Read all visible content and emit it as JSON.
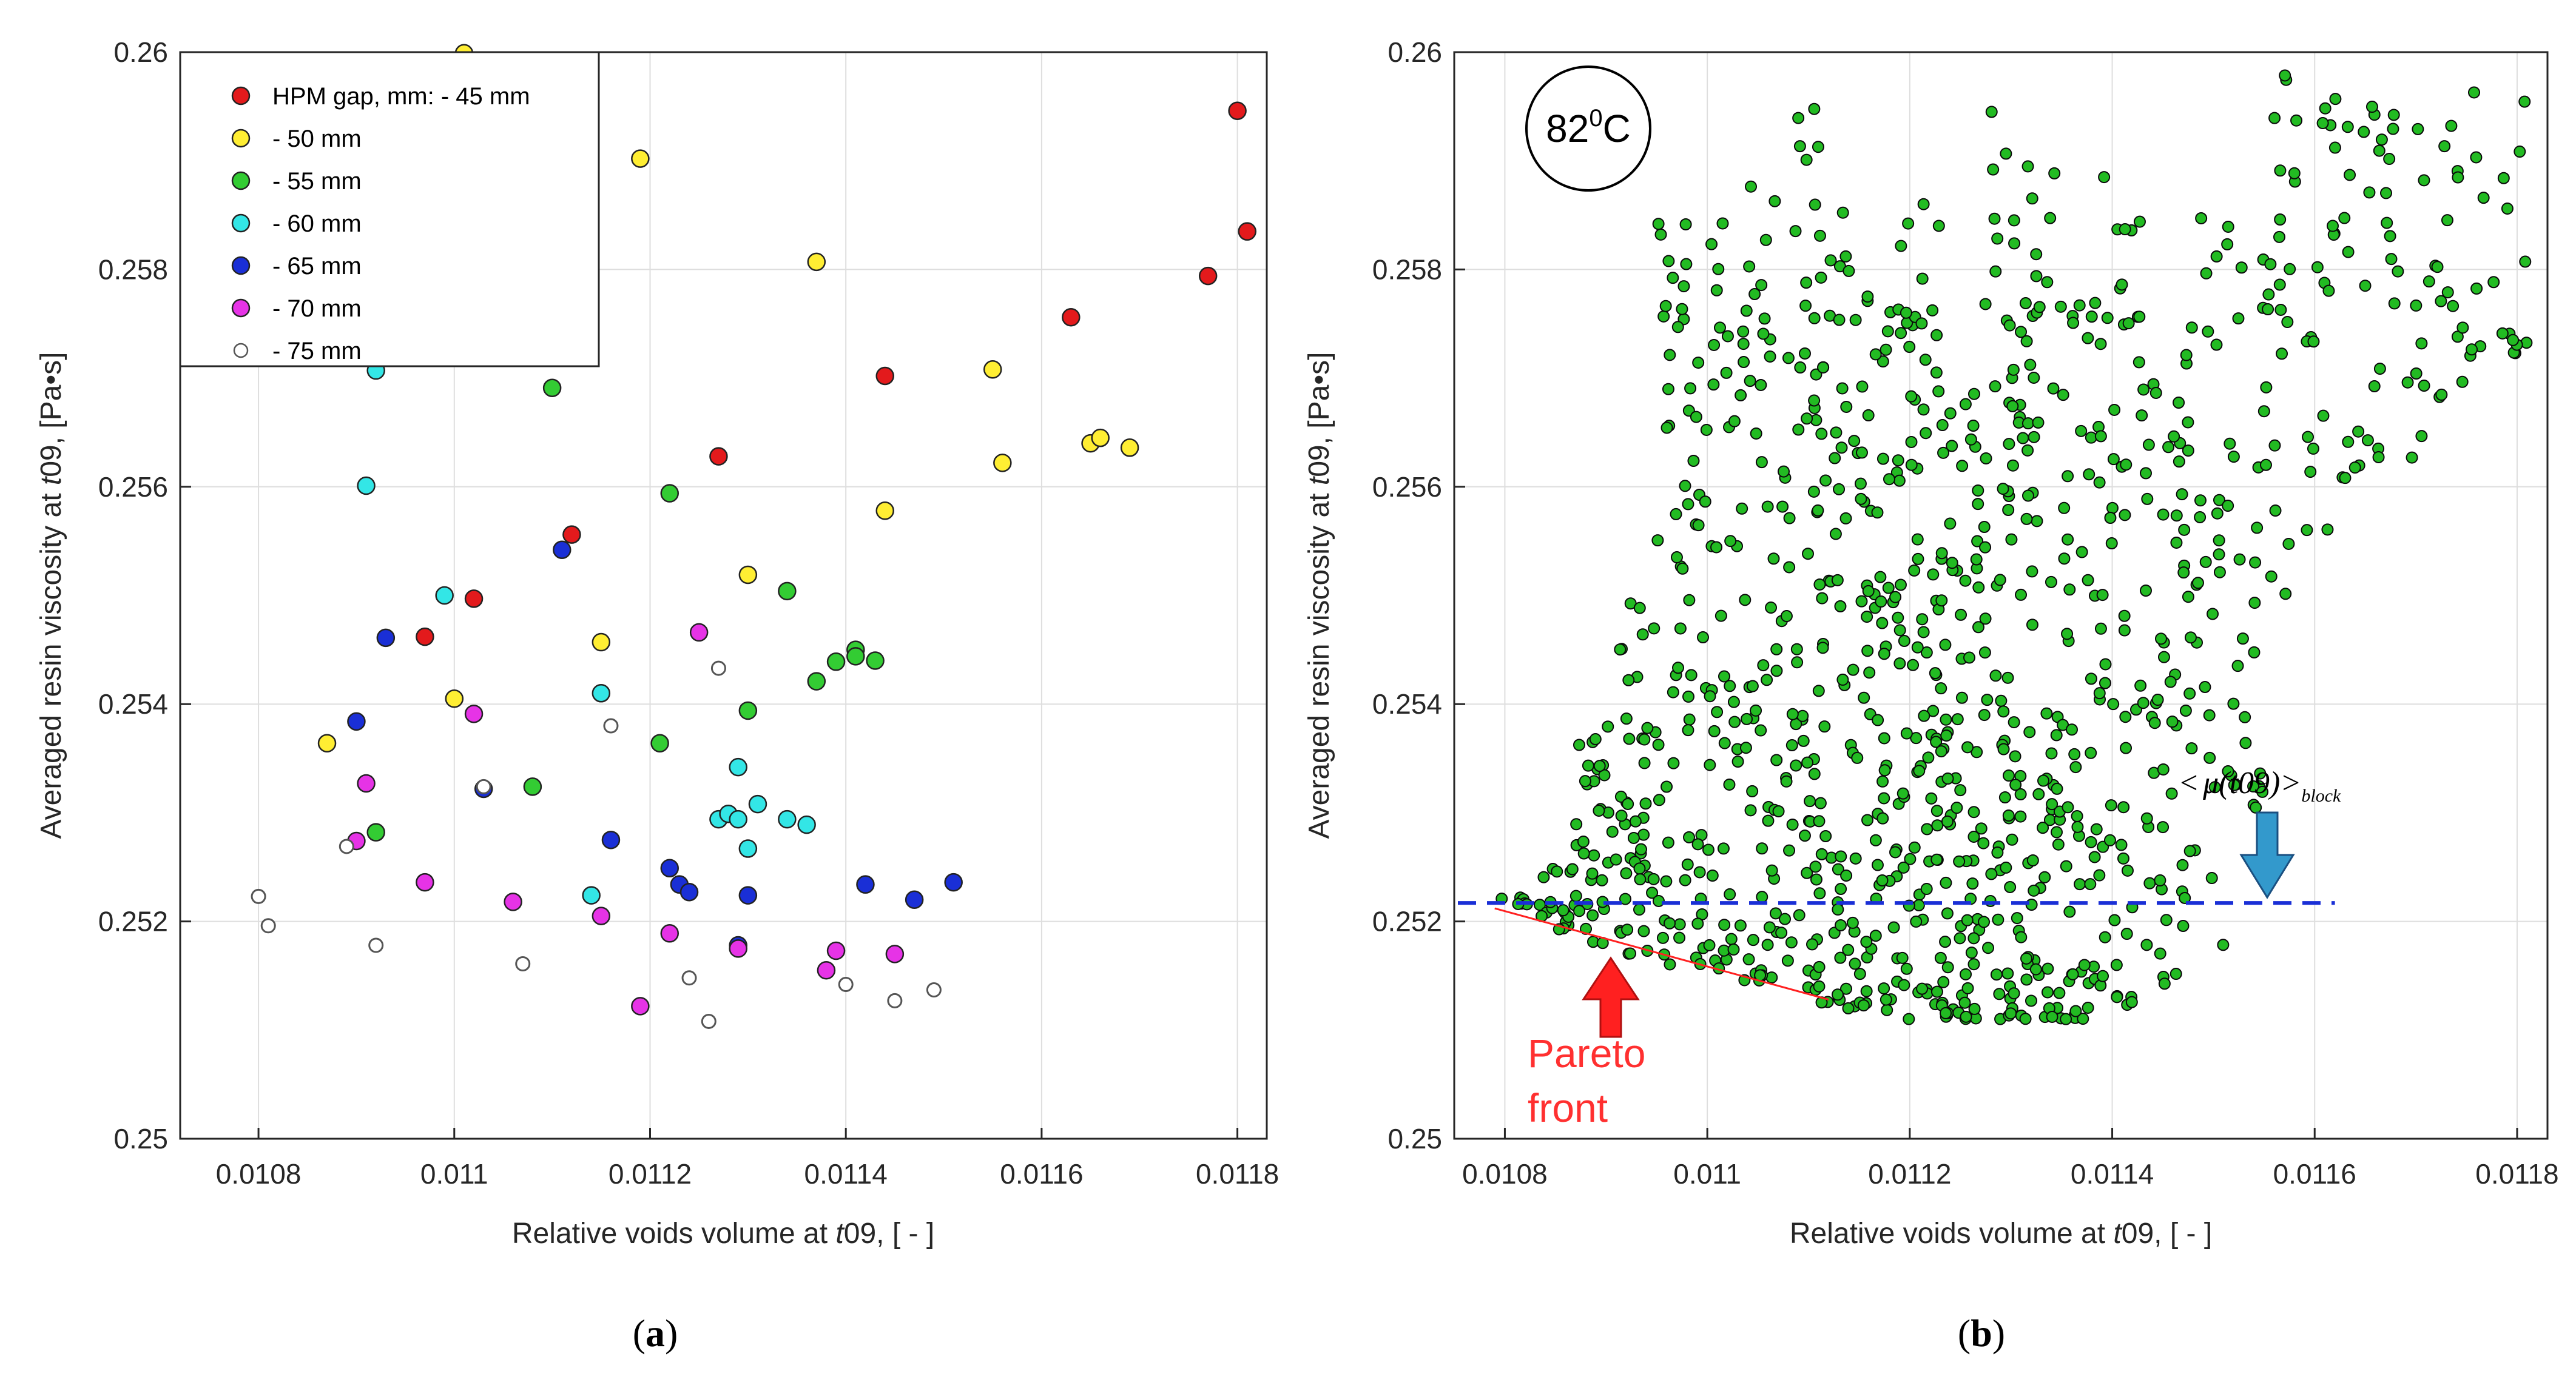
{
  "captions": {
    "a": "(a)",
    "b": "(b)"
  },
  "chart_data": [
    {
      "type": "scatter",
      "panel": "a",
      "xlabel_pre": "Relative voids volume at ",
      "xlabel_var": "t",
      "xlabel_post": "09, [ - ]",
      "ylabel_pre": "Averaged resin viscosity at ",
      "ylabel_var": "t",
      "ylabel_post": "09, [Pa•s]",
      "xlim": [
        0.01072,
        0.01183
      ],
      "ylim": [
        0.25,
        0.26
      ],
      "xticks": [
        0.0108,
        0.011,
        0.0112,
        0.0114,
        0.0116,
        0.0118
      ],
      "xtick_labels": [
        "0.0108",
        "0.011",
        "0.0112",
        "0.0114",
        "0.0116",
        "0.0118"
      ],
      "yticks": [
        0.25,
        0.252,
        0.254,
        0.256,
        0.258,
        0.26
      ],
      "ytick_labels": [
        "0.25",
        "0.252",
        "0.254",
        "0.256",
        "0.258",
        "0.26"
      ],
      "grid": true,
      "legend_position": "top-left",
      "series": [
        {
          "name": "HPM gap, mm: - 45 mm",
          "color": "#e31a1c",
          "points": [
            [
              0.01097,
              0.25462
            ],
            [
              0.01102,
              0.25497
            ],
            [
              0.01112,
              0.25556
            ],
            [
              0.01127,
              0.25628
            ],
            [
              0.01144,
              0.25702
            ],
            [
              0.01163,
              0.25756
            ],
            [
              0.01177,
              0.25794
            ],
            [
              0.0118,
              0.25946
            ],
            [
              0.01181,
              0.25835
            ]
          ]
        },
        {
          "name": "- 50 mm",
          "color": "#ffee33",
          "points": [
            [
              0.01087,
              0.25364
            ],
            [
              0.011,
              0.25405
            ],
            [
              0.01101,
              0.25999
            ],
            [
              0.01115,
              0.25457
            ],
            [
              0.01119,
              0.25902
            ],
            [
              0.0113,
              0.25519
            ],
            [
              0.01137,
              0.25807
            ],
            [
              0.01144,
              0.25578
            ],
            [
              0.01155,
              0.25708
            ],
            [
              0.01156,
              0.25622
            ],
            [
              0.01165,
              0.2564
            ],
            [
              0.01166,
              0.25645
            ],
            [
              0.01169,
              0.25636
            ]
          ]
        },
        {
          "name": "- 55 mm",
          "color": "#33cc33",
          "points": [
            [
              0.01092,
              0.25282
            ],
            [
              0.01108,
              0.25324
            ],
            [
              0.0111,
              0.25691
            ],
            [
              0.01121,
              0.25364
            ],
            [
              0.01122,
              0.25594
            ],
            [
              0.0113,
              0.25394
            ],
            [
              0.01134,
              0.25504
            ],
            [
              0.01137,
              0.25421
            ],
            [
              0.01139,
              0.25439
            ],
            [
              0.01141,
              0.2545
            ],
            [
              0.01141,
              0.25444
            ],
            [
              0.01143,
              0.2544
            ]
          ]
        },
        {
          "name": "- 60 mm",
          "color": "#33e6e6",
          "points": [
            [
              0.01091,
              0.25601
            ],
            [
              0.01092,
              0.25707
            ],
            [
              0.01099,
              0.255
            ],
            [
              0.01114,
              0.25224
            ],
            [
              0.01115,
              0.2541
            ],
            [
              0.01127,
              0.25294
            ],
            [
              0.01128,
              0.25299
            ],
            [
              0.01129,
              0.25342
            ],
            [
              0.01129,
              0.25294
            ],
            [
              0.0113,
              0.25267
            ],
            [
              0.01131,
              0.25308
            ],
            [
              0.01134,
              0.25294
            ],
            [
              0.01136,
              0.25289
            ]
          ]
        },
        {
          "name": "- 65 mm",
          "color": "#1a2fd6",
          "points": [
            [
              0.0109,
              0.25384
            ],
            [
              0.01093,
              0.25461
            ],
            [
              0.01103,
              0.25322
            ],
            [
              0.01111,
              0.25542
            ],
            [
              0.01116,
              0.25275
            ],
            [
              0.01122,
              0.25249
            ],
            [
              0.01123,
              0.25234
            ],
            [
              0.01124,
              0.25227
            ],
            [
              0.01129,
              0.25178
            ],
            [
              0.0113,
              0.25224
            ],
            [
              0.01142,
              0.25234
            ],
            [
              0.01147,
              0.2522
            ],
            [
              0.01151,
              0.25236
            ]
          ]
        },
        {
          "name": "- 70 mm",
          "color": "#e633e6",
          "points": [
            [
              0.0109,
              0.25274
            ],
            [
              0.01091,
              0.25327
            ],
            [
              0.01097,
              0.25236
            ],
            [
              0.01102,
              0.25391
            ],
            [
              0.01106,
              0.25218
            ],
            [
              0.01115,
              0.25205
            ],
            [
              0.01119,
              0.25122
            ],
            [
              0.01122,
              0.25189
            ],
            [
              0.01125,
              0.25466
            ],
            [
              0.01129,
              0.25175
            ],
            [
              0.01138,
              0.25155
            ],
            [
              0.01139,
              0.25173
            ],
            [
              0.01145,
              0.2517
            ]
          ]
        },
        {
          "name": "- 75 mm",
          "color": "#ffffff",
          "points": [
            [
              0.0108,
              0.25223
            ],
            [
              0.01081,
              0.25196
            ],
            [
              0.01089,
              0.25269
            ],
            [
              0.01092,
              0.25178
            ],
            [
              0.01103,
              0.25324
            ],
            [
              0.01107,
              0.25161
            ],
            [
              0.01116,
              0.2538
            ],
            [
              0.01124,
              0.25148
            ],
            [
              0.01126,
              0.25108
            ],
            [
              0.01127,
              0.25433
            ],
            [
              0.0114,
              0.25142
            ],
            [
              0.01145,
              0.25127
            ],
            [
              0.01149,
              0.25137
            ]
          ]
        }
      ]
    },
    {
      "type": "scatter",
      "panel": "b",
      "xlabel_pre": "Relative voids volume at ",
      "xlabel_var": "t",
      "xlabel_post": "09, [ - ]",
      "ylabel_pre": "Averaged resin viscosity at ",
      "ylabel_var": "t",
      "ylabel_post": "09, [Pa•s]",
      "xlim": [
        0.01075,
        0.01183
      ],
      "ylim": [
        0.25,
        0.26
      ],
      "xticks": [
        0.0108,
        0.011,
        0.0112,
        0.0114,
        0.0116,
        0.0118
      ],
      "xtick_labels": [
        "0.0108",
        "0.011",
        "0.0112",
        "0.0114",
        "0.0116",
        "0.0118"
      ],
      "yticks": [
        0.25,
        0.252,
        0.254,
        0.256,
        0.258,
        0.26
      ],
      "ytick_labels": [
        "0.25",
        "0.252",
        "0.254",
        "0.256",
        "0.258",
        "0.26"
      ],
      "grid": true,
      "point_color": "#22bb22",
      "point_count_estimate": 1200,
      "cloud_bands": [
        {
          "x_from": 0.01079,
          "x_to": 0.01083,
          "y_min": 0.25215,
          "y_max": 0.25222,
          "count": 8
        },
        {
          "x_from": 0.01083,
          "x_to": 0.01087,
          "y_min": 0.2519,
          "y_max": 0.2526,
          "count": 18
        },
        {
          "x_from": 0.01087,
          "x_to": 0.01091,
          "y_min": 0.2518,
          "y_max": 0.2538,
          "count": 35
        },
        {
          "x_from": 0.01091,
          "x_to": 0.01095,
          "y_min": 0.2517,
          "y_max": 0.255,
          "count": 45
        },
        {
          "x_from": 0.01095,
          "x_to": 0.01099,
          "y_min": 0.2516,
          "y_max": 0.2585,
          "count": 55
        },
        {
          "x_from": 0.01099,
          "x_to": 0.01103,
          "y_min": 0.2515,
          "y_max": 0.2586,
          "count": 55
        },
        {
          "x_from": 0.01103,
          "x_to": 0.01107,
          "y_min": 0.25145,
          "y_max": 0.259,
          "count": 60
        },
        {
          "x_from": 0.01107,
          "x_to": 0.01111,
          "y_min": 0.25135,
          "y_max": 0.2595,
          "count": 65
        },
        {
          "x_from": 0.01111,
          "x_to": 0.01115,
          "y_min": 0.2512,
          "y_max": 0.2592,
          "count": 70
        },
        {
          "x_from": 0.01115,
          "x_to": 0.01119,
          "y_min": 0.25115,
          "y_max": 0.258,
          "count": 75
        },
        {
          "x_from": 0.01119,
          "x_to": 0.01123,
          "y_min": 0.2511,
          "y_max": 0.259,
          "count": 80
        },
        {
          "x_from": 0.01123,
          "x_to": 0.01127,
          "y_min": 0.2511,
          "y_max": 0.257,
          "count": 85
        },
        {
          "x_from": 0.01127,
          "x_to": 0.01131,
          "y_min": 0.2511,
          "y_max": 0.2595,
          "count": 80
        },
        {
          "x_from": 0.01131,
          "x_to": 0.01135,
          "y_min": 0.2511,
          "y_max": 0.259,
          "count": 70
        },
        {
          "x_from": 0.01135,
          "x_to": 0.01139,
          "y_min": 0.2511,
          "y_max": 0.258,
          "count": 60
        },
        {
          "x_from": 0.01139,
          "x_to": 0.01143,
          "y_min": 0.2512,
          "y_max": 0.259,
          "count": 50
        },
        {
          "x_from": 0.01143,
          "x_to": 0.01147,
          "y_min": 0.2514,
          "y_max": 0.258,
          "count": 45
        },
        {
          "x_from": 0.01147,
          "x_to": 0.01151,
          "y_min": 0.2515,
          "y_max": 0.2585,
          "count": 40
        },
        {
          "x_from": 0.01151,
          "x_to": 0.01155,
          "y_min": 0.253,
          "y_max": 0.2595,
          "count": 30
        },
        {
          "x_from": 0.01155,
          "x_to": 0.01159,
          "y_min": 0.255,
          "y_max": 0.2598,
          "count": 25
        },
        {
          "x_from": 0.01159,
          "x_to": 0.01163,
          "y_min": 0.2556,
          "y_max": 0.2596,
          "count": 22
        },
        {
          "x_from": 0.01163,
          "x_to": 0.01167,
          "y_min": 0.256,
          "y_max": 0.2595,
          "count": 20
        },
        {
          "x_from": 0.01167,
          "x_to": 0.01171,
          "y_min": 0.2562,
          "y_max": 0.2596,
          "count": 18
        },
        {
          "x_from": 0.01171,
          "x_to": 0.01175,
          "y_min": 0.2568,
          "y_max": 0.2598,
          "count": 16
        },
        {
          "x_from": 0.01175,
          "x_to": 0.01181,
          "y_min": 0.2572,
          "y_max": 0.2597,
          "count": 20
        }
      ],
      "block_mean_value": 0.25217,
      "block_mean_label_pre": "<",
      "block_mean_label_mu": "μ",
      "block_mean_label_arg": "(t09)",
      "block_mean_label_post": ">",
      "block_mean_label_sub": "block",
      "pareto_label_line1": "Pareto",
      "pareto_label_line2": "front",
      "pareto_front": [
        [
          0.01079,
          0.25212
        ],
        [
          0.01112,
          0.25128
        ]
      ],
      "temperature_badge_base": "82",
      "temperature_badge_sup": "0",
      "temperature_badge_unit": "C"
    }
  ]
}
